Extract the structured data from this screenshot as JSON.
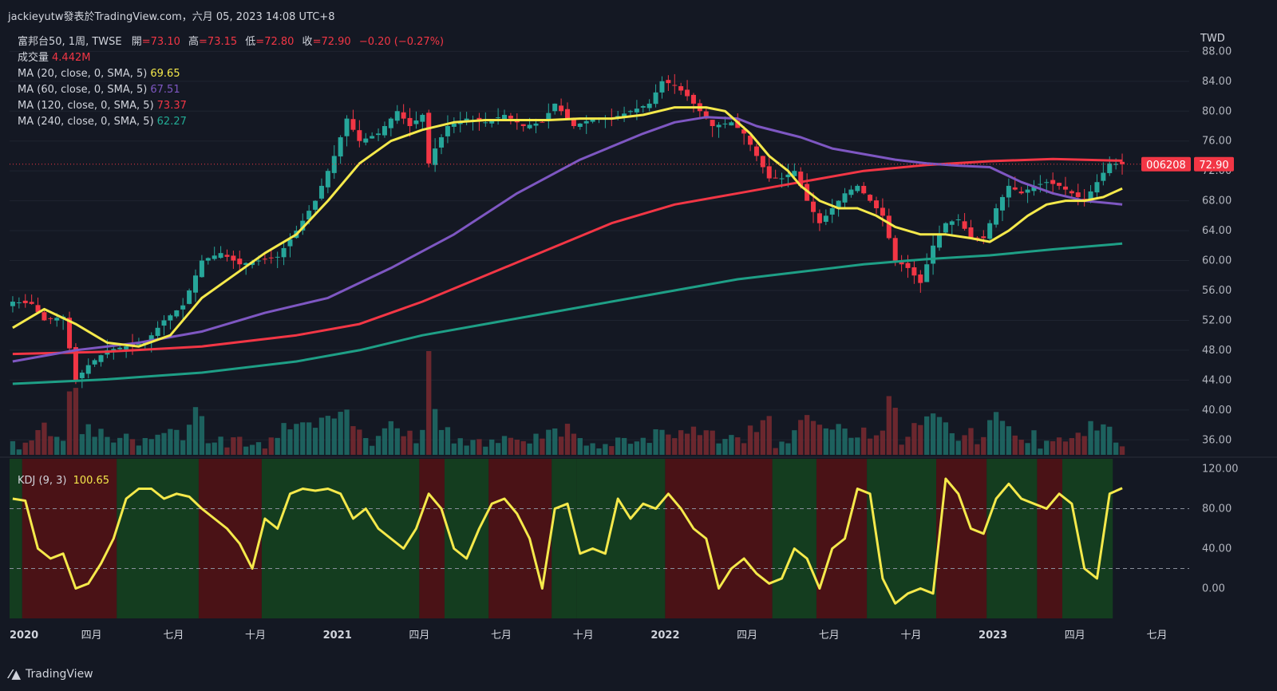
{
  "header": {
    "publisher": "jackieyutw發表於TradingView.com，六月 05, 2023 14:08 UTC+8"
  },
  "legend": {
    "symbol": "富邦台50, 1周, TWSE",
    "open_label": "開",
    "open": "=73.10",
    "high_label": "高",
    "high": "=73.15",
    "low_label": "低",
    "low": "=72.80",
    "close_label": "收",
    "close": "=72.90",
    "change": "−0.20 (−0.27%)",
    "volume_label": "成交量",
    "volume": "4.442M",
    "ma20_label": "MA (20, close, 0, SMA, 5)",
    "ma20": "69.65",
    "ma60_label": "MA (60, close, 0, SMA, 5)",
    "ma60": "67.51",
    "ma120_label": "MA (120, close, 0, SMA, 5)",
    "ma120": "73.37",
    "ma240_label": "MA (240, close, 0, SMA, 5)",
    "ma240": "62.27",
    "kdj_label": "KDJ (9, 3)",
    "kdj": "100.65"
  },
  "price_badge": {
    "ticker": "006208",
    "price": "72.90"
  },
  "logo": {
    "text": "TradingView"
  },
  "colors": {
    "up": "#26a69a",
    "down": "#f23645",
    "ma20": "#f5e94b",
    "ma60": "#7e57c2",
    "ma120": "#f23645",
    "ma240": "#1e9f86",
    "kdj": "#f5e94b",
    "bg": "#141823"
  },
  "chart_data": {
    "type": "candlestick",
    "currency": "TWD",
    "price_axis": {
      "ylim": [
        34,
        89
      ],
      "ticks": [
        36,
        40,
        44,
        48,
        52,
        56,
        60,
        64,
        68,
        72,
        76,
        80,
        84,
        88
      ],
      "labels": [
        "36.00",
        "40.00",
        "44.00",
        "48.00",
        "52.00",
        "56.00",
        "60.00",
        "64.00",
        "68.00",
        "72.00",
        "76.00",
        "80.00",
        "84.00",
        "88.00"
      ]
    },
    "kdj_axis": {
      "ylim": [
        -30,
        130
      ],
      "ticks": [
        0,
        40,
        80,
        120
      ],
      "labels": [
        "0.00",
        "40.00",
        "80.00",
        "120.00"
      ],
      "guides": [
        20,
        80
      ]
    },
    "time_axis": {
      "labels": [
        "2020",
        "四月",
        "七月",
        "十月",
        "2021",
        "四月",
        "七月",
        "十月",
        "2022",
        "四月",
        "七月",
        "十月",
        "2023",
        "四月",
        "七月"
      ],
      "positions": [
        0,
        13,
        26,
        39,
        52,
        65,
        78,
        91,
        104,
        117,
        130,
        143,
        156,
        169,
        182
      ]
    },
    "close_anchors": [
      [
        0,
        54.5
      ],
      [
        3,
        54.2
      ],
      [
        5,
        52
      ],
      [
        8,
        52.5
      ],
      [
        10,
        44
      ],
      [
        12,
        46
      ],
      [
        15,
        48
      ],
      [
        18,
        48.5
      ],
      [
        21,
        49
      ],
      [
        24,
        52
      ],
      [
        27,
        54
      ],
      [
        30,
        60
      ],
      [
        33,
        61
      ],
      [
        36,
        59.5
      ],
      [
        39,
        60
      ],
      [
        42,
        60.5
      ],
      [
        45,
        64
      ],
      [
        48,
        68
      ],
      [
        51,
        74
      ],
      [
        53,
        79
      ],
      [
        55,
        76
      ],
      [
        58,
        77
      ],
      [
        61,
        80
      ],
      [
        63,
        78
      ],
      [
        65,
        79.5
      ],
      [
        66,
        73
      ],
      [
        67,
        75
      ],
      [
        69,
        78
      ],
      [
        72,
        79
      ],
      [
        75,
        78.5
      ],
      [
        78,
        79.5
      ],
      [
        81,
        78
      ],
      [
        84,
        78.5
      ],
      [
        86,
        81
      ],
      [
        89,
        78
      ],
      [
        92,
        79
      ],
      [
        95,
        79
      ],
      [
        98,
        80
      ],
      [
        101,
        81
      ],
      [
        103,
        84
      ],
      [
        105,
        83.5
      ],
      [
        107,
        82
      ],
      [
        109,
        80
      ],
      [
        111,
        78
      ],
      [
        114,
        78.5
      ],
      [
        116,
        77
      ],
      [
        118,
        74
      ],
      [
        120,
        71
      ],
      [
        122,
        71
      ],
      [
        124,
        72
      ],
      [
        126,
        68
      ],
      [
        128,
        65
      ],
      [
        130,
        67
      ],
      [
        132,
        69
      ],
      [
        134,
        70
      ],
      [
        136,
        68
      ],
      [
        138,
        66
      ],
      [
        140,
        60
      ],
      [
        142,
        59
      ],
      [
        144,
        57
      ],
      [
        146,
        62
      ],
      [
        148,
        65
      ],
      [
        150,
        65.5
      ],
      [
        152,
        63
      ],
      [
        154,
        63
      ],
      [
        156,
        67
      ],
      [
        158,
        70
      ],
      [
        160,
        69
      ],
      [
        162,
        70
      ],
      [
        164,
        70.5
      ],
      [
        166,
        70
      ],
      [
        168,
        69
      ],
      [
        170,
        68
      ],
      [
        172,
        70.5
      ],
      [
        174,
        73
      ],
      [
        176,
        72.9
      ]
    ],
    "ma20_points": [
      [
        0,
        51
      ],
      [
        5,
        53.5
      ],
      [
        10,
        51.5
      ],
      [
        15,
        49
      ],
      [
        20,
        48.5
      ],
      [
        25,
        50
      ],
      [
        30,
        55
      ],
      [
        35,
        58
      ],
      [
        40,
        61
      ],
      [
        45,
        63.5
      ],
      [
        50,
        68
      ],
      [
        55,
        73
      ],
      [
        60,
        76
      ],
      [
        65,
        77.5
      ],
      [
        70,
        78.5
      ],
      [
        75,
        78.8
      ],
      [
        80,
        78.8
      ],
      [
        85,
        78.8
      ],
      [
        90,
        79
      ],
      [
        95,
        79
      ],
      [
        100,
        79.5
      ],
      [
        105,
        80.5
      ],
      [
        110,
        80.5
      ],
      [
        113,
        80
      ],
      [
        117,
        77
      ],
      [
        120,
        74
      ],
      [
        123,
        72
      ],
      [
        125,
        70
      ],
      [
        128,
        68
      ],
      [
        131,
        67
      ],
      [
        134,
        67
      ],
      [
        137,
        66
      ],
      [
        140,
        64.5
      ],
      [
        144,
        63.5
      ],
      [
        148,
        63.5
      ],
      [
        152,
        63
      ],
      [
        155,
        62.5
      ],
      [
        158,
        64
      ],
      [
        161,
        66
      ],
      [
        164,
        67.5
      ],
      [
        167,
        68
      ],
      [
        170,
        68
      ],
      [
        173,
        68.5
      ],
      [
        176,
        69.65
      ]
    ],
    "ma60_points": [
      [
        0,
        46.5
      ],
      [
        10,
        48
      ],
      [
        20,
        49
      ],
      [
        30,
        50.5
      ],
      [
        40,
        53
      ],
      [
        50,
        55
      ],
      [
        60,
        59
      ],
      [
        70,
        63.5
      ],
      [
        80,
        69
      ],
      [
        90,
        73.5
      ],
      [
        100,
        77
      ],
      [
        105,
        78.5
      ],
      [
        110,
        79.2
      ],
      [
        115,
        79
      ],
      [
        118,
        78
      ],
      [
        125,
        76.5
      ],
      [
        130,
        75
      ],
      [
        140,
        73.5
      ],
      [
        145,
        73
      ],
      [
        150,
        72.7
      ],
      [
        155,
        72.5
      ],
      [
        160,
        70.5
      ],
      [
        165,
        69
      ],
      [
        170,
        68
      ],
      [
        176,
        67.51
      ]
    ],
    "ma120_points": [
      [
        0,
        47.5
      ],
      [
        15,
        47.8
      ],
      [
        30,
        48.5
      ],
      [
        45,
        50
      ],
      [
        55,
        51.5
      ],
      [
        65,
        54.5
      ],
      [
        75,
        58
      ],
      [
        85,
        61.5
      ],
      [
        95,
        65
      ],
      [
        105,
        67.5
      ],
      [
        115,
        69
      ],
      [
        125,
        70.5
      ],
      [
        135,
        72
      ],
      [
        145,
        72.8
      ],
      [
        155,
        73.3
      ],
      [
        165,
        73.6
      ],
      [
        176,
        73.37
      ]
    ],
    "ma240_points": [
      [
        0,
        43.5
      ],
      [
        15,
        44.1
      ],
      [
        30,
        45
      ],
      [
        45,
        46.5
      ],
      [
        55,
        48
      ],
      [
        65,
        50
      ],
      [
        75,
        51.5
      ],
      [
        85,
        53
      ],
      [
        95,
        54.5
      ],
      [
        105,
        56
      ],
      [
        115,
        57.5
      ],
      [
        125,
        58.5
      ],
      [
        135,
        59.5
      ],
      [
        145,
        60.2
      ],
      [
        155,
        60.7
      ],
      [
        165,
        61.5
      ],
      [
        176,
        62.27
      ]
    ],
    "kdj_points": [
      [
        0,
        90
      ],
      [
        2,
        88
      ],
      [
        4,
        40
      ],
      [
        6,
        30
      ],
      [
        8,
        35
      ],
      [
        10,
        0
      ],
      [
        12,
        5
      ],
      [
        14,
        25
      ],
      [
        16,
        50
      ],
      [
        18,
        90
      ],
      [
        20,
        100
      ],
      [
        22,
        100
      ],
      [
        24,
        90
      ],
      [
        26,
        95
      ],
      [
        28,
        92
      ],
      [
        30,
        80
      ],
      [
        32,
        70
      ],
      [
        34,
        60
      ],
      [
        36,
        45
      ],
      [
        38,
        20
      ],
      [
        40,
        70
      ],
      [
        42,
        60
      ],
      [
        44,
        95
      ],
      [
        46,
        100
      ],
      [
        48,
        98
      ],
      [
        50,
        100
      ],
      [
        52,
        95
      ],
      [
        54,
        70
      ],
      [
        56,
        80
      ],
      [
        58,
        60
      ],
      [
        60,
        50
      ],
      [
        62,
        40
      ],
      [
        64,
        60
      ],
      [
        66,
        95
      ],
      [
        68,
        80
      ],
      [
        70,
        40
      ],
      [
        72,
        30
      ],
      [
        74,
        60
      ],
      [
        76,
        85
      ],
      [
        78,
        90
      ],
      [
        80,
        75
      ],
      [
        82,
        50
      ],
      [
        84,
        0
      ],
      [
        86,
        80
      ],
      [
        88,
        85
      ],
      [
        90,
        35
      ],
      [
        92,
        40
      ],
      [
        94,
        35
      ],
      [
        96,
        90
      ],
      [
        98,
        70
      ],
      [
        100,
        85
      ],
      [
        102,
        80
      ],
      [
        104,
        95
      ],
      [
        106,
        80
      ],
      [
        108,
        60
      ],
      [
        110,
        50
      ],
      [
        112,
        0
      ],
      [
        114,
        20
      ],
      [
        116,
        30
      ],
      [
        118,
        15
      ],
      [
        120,
        5
      ],
      [
        122,
        10
      ],
      [
        124,
        40
      ],
      [
        126,
        30
      ],
      [
        128,
        0
      ],
      [
        130,
        40
      ],
      [
        132,
        50
      ],
      [
        134,
        100
      ],
      [
        136,
        95
      ],
      [
        138,
        10
      ],
      [
        140,
        -15
      ],
      [
        142,
        -5
      ],
      [
        144,
        0
      ],
      [
        146,
        -5
      ],
      [
        148,
        110
      ],
      [
        150,
        95
      ],
      [
        152,
        60
      ],
      [
        154,
        55
      ],
      [
        156,
        90
      ],
      [
        158,
        105
      ],
      [
        160,
        90
      ],
      [
        162,
        85
      ],
      [
        164,
        80
      ],
      [
        166,
        95
      ],
      [
        168,
        85
      ],
      [
        170,
        20
      ],
      [
        172,
        10
      ],
      [
        174,
        95
      ],
      [
        176,
        100.65
      ]
    ],
    "kdj_zones": [
      {
        "from": 0,
        "to": 2,
        "state": "green"
      },
      {
        "from": 2,
        "to": 17,
        "state": "red"
      },
      {
        "from": 17,
        "to": 30,
        "state": "green"
      },
      {
        "from": 30,
        "to": 40,
        "state": "red"
      },
      {
        "from": 40,
        "to": 65,
        "state": "green"
      },
      {
        "from": 65,
        "to": 69,
        "state": "red"
      },
      {
        "from": 69,
        "to": 76,
        "state": "green"
      },
      {
        "from": 76,
        "to": 86,
        "state": "red"
      },
      {
        "from": 86,
        "to": 90,
        "state": "green"
      },
      {
        "from": 90,
        "to": 104,
        "state": "green"
      },
      {
        "from": 104,
        "to": 121,
        "state": "red"
      },
      {
        "from": 121,
        "to": 128,
        "state": "green"
      },
      {
        "from": 128,
        "to": 136,
        "state": "red"
      },
      {
        "from": 136,
        "to": 147,
        "state": "green"
      },
      {
        "from": 147,
        "to": 155,
        "state": "red"
      },
      {
        "from": 155,
        "to": 163,
        "state": "green"
      },
      {
        "from": 163,
        "to": 167,
        "state": "red"
      },
      {
        "from": 167,
        "to": 175,
        "state": "green"
      }
    ]
  }
}
